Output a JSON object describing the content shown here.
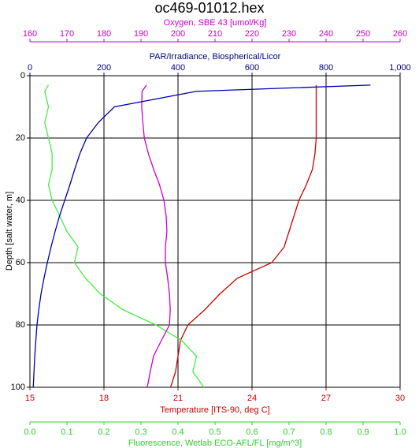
{
  "chart_data": {
    "type": "line",
    "title": "oc469-01012.hex",
    "ylabel": "Depth [salt water, m]",
    "ylim": [
      0,
      100
    ],
    "y_reversed": true,
    "yticks": [
      0,
      20,
      40,
      60,
      80,
      100
    ],
    "grid": true,
    "depth": [
      3,
      5,
      10,
      15,
      20,
      25,
      30,
      35,
      40,
      45,
      50,
      55,
      60,
      65,
      70,
      75,
      80,
      85,
      90,
      95,
      100
    ],
    "x_axes": [
      {
        "key": "oxygen",
        "side": "top",
        "label": "Oxygen, SBE 43 [umol/Kg]",
        "color": "#cc00cc",
        "lim": [
          160,
          260
        ],
        "ticks": [
          160,
          170,
          180,
          190,
          200,
          210,
          220,
          230,
          240,
          250,
          260
        ]
      },
      {
        "key": "par",
        "side": "top",
        "label": "PAR/Irradiance, Biospherical/Licor",
        "color": "#000080",
        "lim": [
          0,
          1000
        ],
        "ticks": [
          0,
          200,
          400,
          600,
          800,
          {
            "value": 1000,
            "label": "1,000"
          }
        ]
      },
      {
        "key": "temperature",
        "side": "bottom",
        "label": "Temperature [ITS-90, deg C]",
        "color": "#cc0000",
        "lim": [
          15,
          30
        ],
        "ticks": [
          15,
          18,
          21,
          24,
          27,
          30
        ],
        "grid": true
      },
      {
        "key": "fluorescence",
        "side": "bottom",
        "label": "Fluorescence, Wetlab ECO-AFL/FL [mg/m^3]",
        "color": "#33cc33",
        "lim": [
          0,
          1
        ],
        "ticks": [
          {
            "value": 0,
            "label": "0.0"
          },
          0.1,
          0.2,
          0.3,
          0.4,
          0.5,
          0.6,
          0.7,
          0.8,
          0.9,
          {
            "value": 1,
            "label": "1.0"
          }
        ]
      }
    ],
    "series": [
      {
        "axis": "temperature",
        "color": "#cc0000",
        "values": [
          26.6,
          26.6,
          26.6,
          26.6,
          26.6,
          26.55,
          26.45,
          26.2,
          25.9,
          25.7,
          25.5,
          25.3,
          24.8,
          23.4,
          22.7,
          22.1,
          21.4,
          21.1,
          21.0,
          20.9,
          20.7
        ]
      },
      {
        "axis": "fluorescence",
        "color": "#44ee44",
        "values": [
          0.05,
          0.04,
          0.05,
          0.04,
          0.05,
          0.06,
          0.06,
          0.05,
          0.06,
          0.08,
          0.1,
          0.13,
          0.12,
          0.15,
          0.19,
          0.25,
          0.34,
          0.41,
          0.45,
          0.44,
          0.47
        ]
      },
      {
        "axis": "oxygen",
        "color": "#cc00cc",
        "values": [
          191.5,
          190.3,
          190.2,
          190.5,
          190.9,
          192,
          193.4,
          195,
          196.2,
          196.8,
          197,
          196.6,
          196.6,
          197.2,
          197.7,
          197.9,
          197.7,
          195.5,
          193.4,
          192.5,
          191.7
        ]
      },
      {
        "axis": "par",
        "color": "#0000aa",
        "values": [
          920,
          450,
          228,
          185,
          153,
          135,
          121,
          108,
          94,
          80,
          68,
          57,
          47,
          38,
          30,
          24,
          19,
          16,
          13,
          11,
          9
        ]
      }
    ]
  }
}
